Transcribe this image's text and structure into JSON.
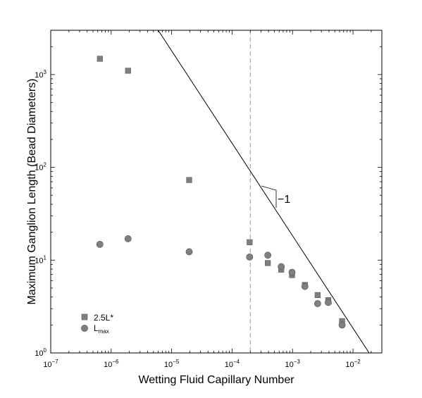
{
  "chart_data": {
    "type": "scatter",
    "xlabel": "Wetting Fluid Capillary Number",
    "ylabel": "Maximum Ganglion Length (Bead Diameters)",
    "xscale": "log",
    "yscale": "log",
    "xlim": [
      1e-07,
      0.03
    ],
    "ylim": [
      1,
      3000
    ],
    "x_ticks": [
      {
        "value": 1e-07,
        "base": "10",
        "exp": "−7"
      },
      {
        "value": 1e-06,
        "base": "10",
        "exp": "−6"
      },
      {
        "value": 1e-05,
        "base": "10",
        "exp": "−5"
      },
      {
        "value": 0.0001,
        "base": "10",
        "exp": "−4"
      },
      {
        "value": 0.001,
        "base": "10",
        "exp": "−3"
      },
      {
        "value": 0.01,
        "base": "10",
        "exp": "−2"
      }
    ],
    "y_ticks": [
      {
        "value": 1,
        "base": "10",
        "exp": "0"
      },
      {
        "value": 10,
        "base": "10",
        "exp": "1"
      },
      {
        "value": 100,
        "base": "10",
        "exp": "2"
      },
      {
        "value": 1000,
        "base": "10",
        "exp": "3"
      }
    ],
    "series": [
      {
        "name": "2.5L*",
        "marker": "square",
        "color": "#7f7f7f",
        "points": [
          [
            6.5e-07,
            1480
          ],
          [
            1.9e-06,
            1100
          ],
          [
            1.95e-05,
            73
          ],
          [
            0.000195,
            15.6
          ],
          [
            0.00039,
            9.3
          ],
          [
            0.00065,
            7.9
          ],
          [
            0.00098,
            6.9
          ],
          [
            0.0016,
            5.4
          ],
          [
            0.0026,
            4.2
          ],
          [
            0.0039,
            3.7
          ],
          [
            0.0066,
            2.2
          ]
        ]
      },
      {
        "name": "L",
        "name_sub": "max",
        "marker": "circle",
        "color": "#7f7f7f",
        "points": [
          [
            6.5e-07,
            14.8
          ],
          [
            1.9e-06,
            17.0
          ],
          [
            1.95e-05,
            12.3
          ],
          [
            0.000195,
            10.8
          ],
          [
            0.00039,
            11.3
          ],
          [
            0.00065,
            8.5
          ],
          [
            0.00098,
            7.4
          ],
          [
            0.0016,
            5.2
          ],
          [
            0.0026,
            3.4
          ],
          [
            0.0039,
            3.5
          ],
          [
            0.0066,
            2.0
          ]
        ]
      }
    ],
    "reference_line": {
      "slope": -1,
      "points": [
        [
          6e-06,
          3000
        ],
        [
          0.0185,
          1
        ]
      ]
    },
    "vertical_line": {
      "x": 0.0002,
      "style": "dashed",
      "color": "#999999"
    },
    "slope_annotation": {
      "text": "−1"
    },
    "legend_position": "bottom-left"
  }
}
